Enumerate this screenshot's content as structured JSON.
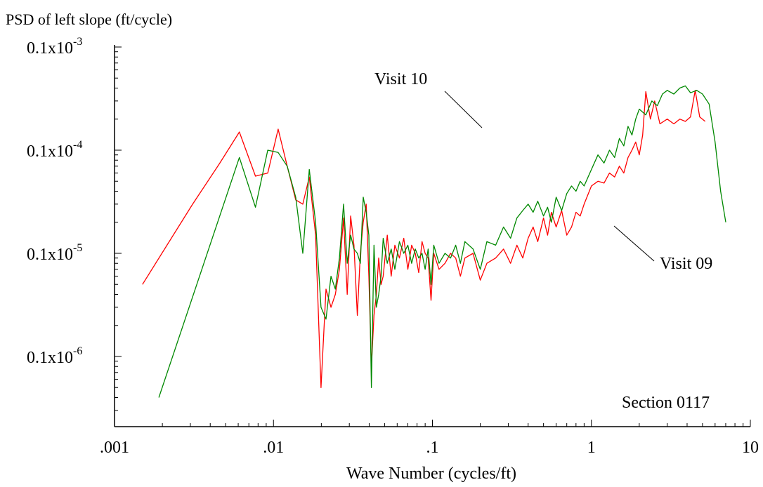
{
  "chart_data": {
    "type": "line",
    "title": "",
    "ylabel": "PSD of left slope (ft/cycle)",
    "xlabel": "Wave Number (cycles/ft)",
    "x_scale": "log",
    "y_scale": "log",
    "xlim": [
      0.001,
      10
    ],
    "ylim": [
      3e-07,
      0.001
    ],
    "x_ticks": [
      {
        "value": 0.001,
        "label": ".001"
      },
      {
        "value": 0.01,
        "label": ".01"
      },
      {
        "value": 0.1,
        "label": ".1"
      },
      {
        "value": 1,
        "label": "1"
      },
      {
        "value": 10,
        "label": "10"
      }
    ],
    "y_ticks": [
      {
        "value": 1e-06,
        "label": "0.1x10",
        "exp": "-6"
      },
      {
        "value": 1e-05,
        "label": "0.1x10",
        "exp": "-5"
      },
      {
        "value": 0.0001,
        "label": "0.1x10",
        "exp": "-4"
      },
      {
        "value": 0.001,
        "label": "0.1x10",
        "exp": "-3"
      }
    ],
    "grid": false,
    "annotations": [
      {
        "text": "Visit 10"
      },
      {
        "text": "Visit 09"
      },
      {
        "text": "Section 0117"
      }
    ],
    "series": [
      {
        "name": "Visit 09",
        "color": "#ff0000",
        "points": [
          [
            0.0015,
            5e-06
          ],
          [
            0.0031,
            3e-05
          ],
          [
            0.0046,
            7.5e-05
          ],
          [
            0.0061,
            0.00015
          ],
          [
            0.0077,
            5.6e-05
          ],
          [
            0.0092,
            6e-05
          ],
          [
            0.0107,
            0.00016
          ],
          [
            0.0122,
            7e-05
          ],
          [
            0.0138,
            3.3e-05
          ],
          [
            0.0153,
            3e-05
          ],
          [
            0.0168,
            5.5e-05
          ],
          [
            0.0184,
            1.5e-05
          ],
          [
            0.0199,
            5e-07
          ],
          [
            0.0214,
            4.5e-06
          ],
          [
            0.023,
            3e-06
          ],
          [
            0.0245,
            4e-06
          ],
          [
            0.026,
            7e-06
          ],
          [
            0.0276,
            2.2e-05
          ],
          [
            0.0291,
            4e-06
          ],
          [
            0.0306,
            2.3e-05
          ],
          [
            0.0321,
            1.2e-05
          ],
          [
            0.0337,
            2.5e-06
          ],
          [
            0.0352,
            1e-05
          ],
          [
            0.0367,
            2e-05
          ],
          [
            0.0383,
            3e-05
          ],
          [
            0.0398,
            6e-06
          ],
          [
            0.0413,
            8e-07
          ],
          [
            0.0429,
            2.5e-06
          ],
          [
            0.0444,
            4e-06
          ],
          [
            0.0459,
            9e-06
          ],
          [
            0.0475,
            5e-06
          ],
          [
            0.049,
            6e-06
          ],
          [
            0.052,
            1.5e-05
          ],
          [
            0.055,
            6e-06
          ],
          [
            0.058,
            1.2e-05
          ],
          [
            0.062,
            9e-06
          ],
          [
            0.066,
            1.4e-05
          ],
          [
            0.07,
            7e-06
          ],
          [
            0.074,
            1.2e-05
          ],
          [
            0.078,
            1e-05
          ],
          [
            0.082,
            6.5e-06
          ],
          [
            0.086,
            1.3e-05
          ],
          [
            0.09,
            1e-05
          ],
          [
            0.094,
            9e-06
          ],
          [
            0.098,
            3.5e-06
          ],
          [
            0.102,
            1e-05
          ],
          [
            0.11,
            7e-06
          ],
          [
            0.12,
            8e-06
          ],
          [
            0.13,
            1e-05
          ],
          [
            0.14,
            9e-06
          ],
          [
            0.15,
            6e-06
          ],
          [
            0.16,
            9e-06
          ],
          [
            0.18,
            1e-05
          ],
          [
            0.2,
            5.5e-06
          ],
          [
            0.22,
            8e-06
          ],
          [
            0.25,
            9e-06
          ],
          [
            0.28,
            1.1e-05
          ],
          [
            0.31,
            8e-06
          ],
          [
            0.34,
            1.2e-05
          ],
          [
            0.37,
            9e-06
          ],
          [
            0.4,
            1.4e-05
          ],
          [
            0.43,
            1.8e-05
          ],
          [
            0.46,
            1.3e-05
          ],
          [
            0.5,
            2.2e-05
          ],
          [
            0.53,
            1.5e-05
          ],
          [
            0.56,
            2.5e-05
          ],
          [
            0.6,
            1.8e-05
          ],
          [
            0.65,
            2.6e-05
          ],
          [
            0.7,
            1.5e-05
          ],
          [
            0.75,
            1.8e-05
          ],
          [
            0.8,
            2.5e-05
          ],
          [
            0.85,
            2.3e-05
          ],
          [
            0.9,
            3e-05
          ],
          [
            1.0,
            4.5e-05
          ],
          [
            1.1,
            5e-05
          ],
          [
            1.2,
            4.8e-05
          ],
          [
            1.3,
            6e-05
          ],
          [
            1.4,
            5.5e-05
          ],
          [
            1.5,
            7e-05
          ],
          [
            1.6,
            6e-05
          ],
          [
            1.7,
            8.5e-05
          ],
          [
            1.8,
            0.0001
          ],
          [
            1.9,
            0.00012
          ],
          [
            2.0,
            9e-05
          ],
          [
            2.1,
            0.00014
          ],
          [
            2.2,
            0.00037
          ],
          [
            2.35,
            0.0002
          ],
          [
            2.5,
            0.0003
          ],
          [
            2.7,
            0.00018
          ],
          [
            3.0,
            0.0002
          ],
          [
            3.3,
            0.00018
          ],
          [
            3.6,
            0.0002
          ],
          [
            3.9,
            0.00019
          ],
          [
            4.2,
            0.00021
          ],
          [
            4.5,
            0.00038
          ],
          [
            4.8,
            0.00021
          ],
          [
            5.2,
            0.00019
          ]
        ]
      },
      {
        "name": "Visit 10",
        "color": "#008800",
        "points": [
          [
            0.0019,
            4e-07
          ],
          [
            0.0061,
            8.5e-05
          ],
          [
            0.0077,
            2.8e-05
          ],
          [
            0.0092,
            0.0001
          ],
          [
            0.0107,
            9.5e-05
          ],
          [
            0.0122,
            7e-05
          ],
          [
            0.0138,
            3.5e-05
          ],
          [
            0.0153,
            1e-05
          ],
          [
            0.0168,
            6.5e-05
          ],
          [
            0.0184,
            2e-05
          ],
          [
            0.0199,
            3e-06
          ],
          [
            0.0214,
            2.3e-06
          ],
          [
            0.023,
            6e-06
          ],
          [
            0.0245,
            4.5e-06
          ],
          [
            0.026,
            9e-06
          ],
          [
            0.0276,
            3e-05
          ],
          [
            0.0291,
            8e-06
          ],
          [
            0.0306,
            1.5e-05
          ],
          [
            0.0321,
            1.1e-05
          ],
          [
            0.0337,
            1e-05
          ],
          [
            0.0352,
            8e-06
          ],
          [
            0.0367,
            3.5e-05
          ],
          [
            0.0383,
            2.5e-05
          ],
          [
            0.0398,
            1.5e-05
          ],
          [
            0.0413,
            5e-07
          ],
          [
            0.0429,
            1.2e-05
          ],
          [
            0.0444,
            3e-06
          ],
          [
            0.0459,
            4e-06
          ],
          [
            0.0475,
            6e-06
          ],
          [
            0.049,
            1.4e-05
          ],
          [
            0.052,
            8e-06
          ],
          [
            0.055,
            1.1e-05
          ],
          [
            0.058,
            7e-06
          ],
          [
            0.062,
            1.3e-05
          ],
          [
            0.066,
            1e-05
          ],
          [
            0.07,
            1.2e-05
          ],
          [
            0.074,
            8e-06
          ],
          [
            0.078,
            1.1e-05
          ],
          [
            0.082,
            9e-06
          ],
          [
            0.086,
            1e-05
          ],
          [
            0.09,
            7e-06
          ],
          [
            0.094,
            1.1e-05
          ],
          [
            0.098,
            5e-06
          ],
          [
            0.102,
            1.2e-05
          ],
          [
            0.11,
            8e-06
          ],
          [
            0.12,
            1e-05
          ],
          [
            0.13,
            9e-06
          ],
          [
            0.14,
            1.2e-05
          ],
          [
            0.15,
            8e-06
          ],
          [
            0.16,
            1.3e-05
          ],
          [
            0.18,
            1.1e-05
          ],
          [
            0.2,
            7e-06
          ],
          [
            0.22,
            1.3e-05
          ],
          [
            0.25,
            1.2e-05
          ],
          [
            0.28,
            1.8e-05
          ],
          [
            0.31,
            1.4e-05
          ],
          [
            0.34,
            2.2e-05
          ],
          [
            0.37,
            2.6e-05
          ],
          [
            0.4,
            3e-05
          ],
          [
            0.43,
            2.5e-05
          ],
          [
            0.46,
            3.2e-05
          ],
          [
            0.5,
            2.3e-05
          ],
          [
            0.53,
            2.8e-05
          ],
          [
            0.56,
            2e-05
          ],
          [
            0.6,
            3.5e-05
          ],
          [
            0.65,
            2.6e-05
          ],
          [
            0.7,
            3.8e-05
          ],
          [
            0.75,
            4.5e-05
          ],
          [
            0.8,
            4e-05
          ],
          [
            0.85,
            5e-05
          ],
          [
            0.9,
            4.5e-05
          ],
          [
            1.0,
            6.5e-05
          ],
          [
            1.1,
            9e-05
          ],
          [
            1.2,
            7.5e-05
          ],
          [
            1.3,
            0.0001
          ],
          [
            1.4,
            8.5e-05
          ],
          [
            1.5,
            0.00013
          ],
          [
            1.6,
            0.00011
          ],
          [
            1.7,
            0.00017
          ],
          [
            1.8,
            0.00014
          ],
          [
            1.9,
            0.0002
          ],
          [
            2.0,
            0.00025
          ],
          [
            2.2,
            0.00022
          ],
          [
            2.4,
            0.0003
          ],
          [
            2.6,
            0.00027
          ],
          [
            2.8,
            0.00035
          ],
          [
            3.0,
            0.00038
          ],
          [
            3.3,
            0.00035
          ],
          [
            3.6,
            0.0004
          ],
          [
            3.9,
            0.00042
          ],
          [
            4.2,
            0.00036
          ],
          [
            4.6,
            0.00038
          ],
          [
            5.0,
            0.00035
          ],
          [
            5.5,
            0.00028
          ],
          [
            6.0,
            0.00012
          ],
          [
            6.5,
            4e-05
          ],
          [
            7.0,
            2e-05
          ]
        ]
      }
    ]
  }
}
